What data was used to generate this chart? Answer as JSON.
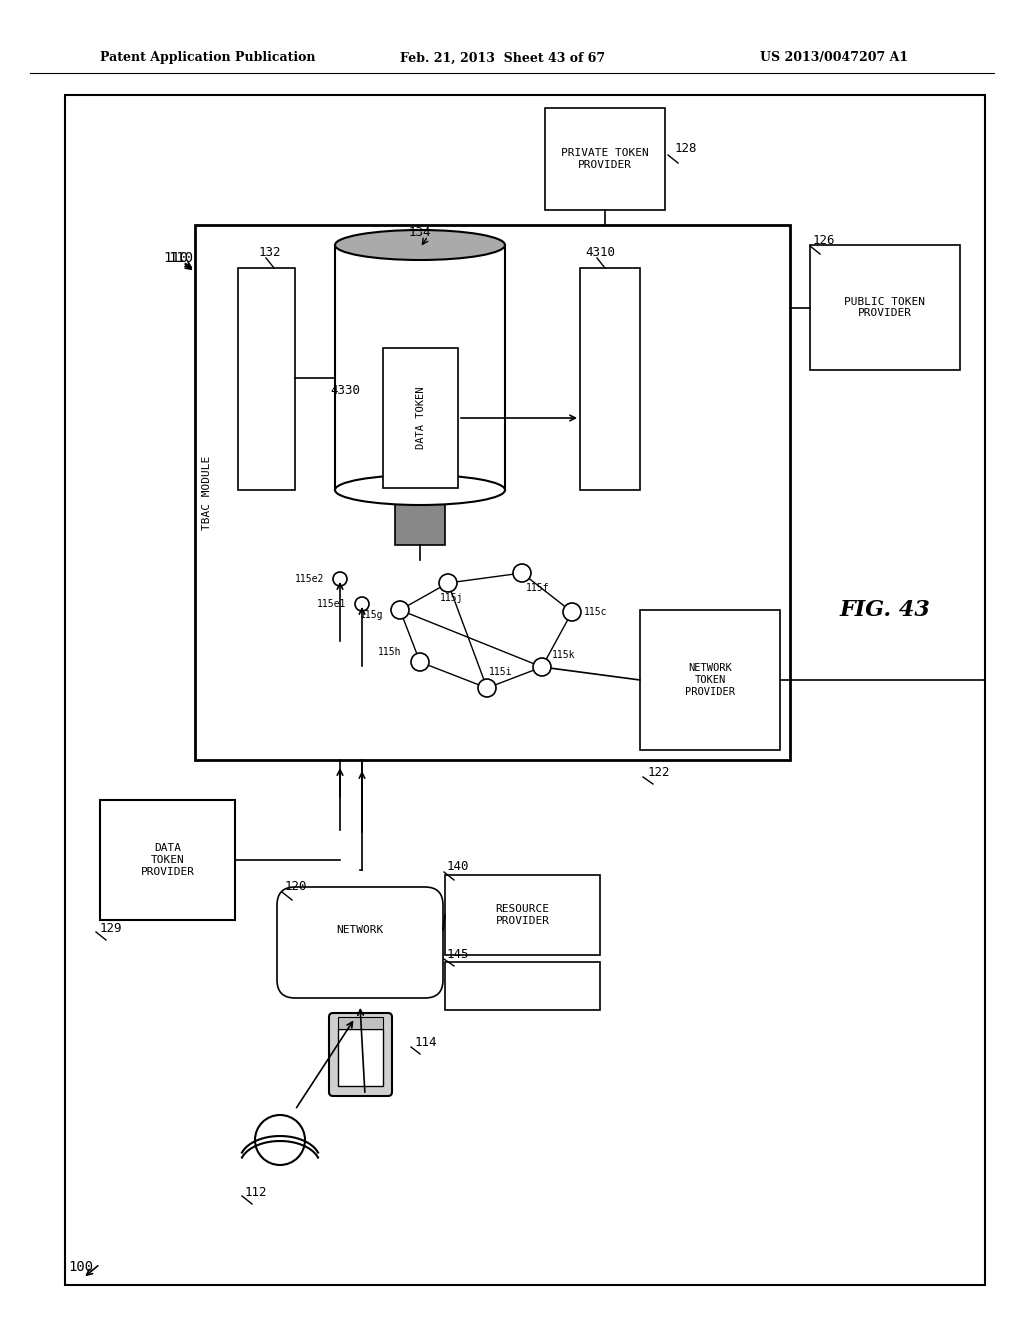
{
  "title_left": "Patent Application Publication",
  "title_center": "Feb. 21, 2013  Sheet 43 of 67",
  "title_right": "US 2013/0047207 A1",
  "fig_label": "FIG. 43",
  "bg_color": "#ffffff",
  "line_color": "#000000",
  "label_100": "100",
  "label_110": "110",
  "label_112": "112",
  "label_114": "114",
  "label_120": "120",
  "label_122": "122",
  "label_126": "126",
  "label_128": "128",
  "label_129": "129",
  "label_132": "132",
  "label_134": "134",
  "label_140": "140",
  "label_145": "145",
  "label_4310": "4310",
  "label_4330": "4330",
  "box_tbac": "TBAC MODULE",
  "box_private": "PRIVATE TOKEN\nPROVIDER",
  "box_public": "PUBLIC TOKEN\nPROVIDER",
  "box_network_tp": "NETWORK\nTOKEN\nPROVIDER",
  "box_data_provider": "DATA\nTOKEN\nPROVIDER",
  "box_network_cloud": "NETWORK",
  "box_resource": "RESOURCE\nPROVIDER",
  "label_115e2": "115e2",
  "label_115e1": "115e1",
  "label_115g": "115g",
  "label_115h": "115h",
  "label_115i": "115i",
  "label_115j": "115j",
  "label_115f": "115f",
  "label_115c": "115c",
  "label_115k": "115k",
  "data_token_text": "DATA TOKEN"
}
